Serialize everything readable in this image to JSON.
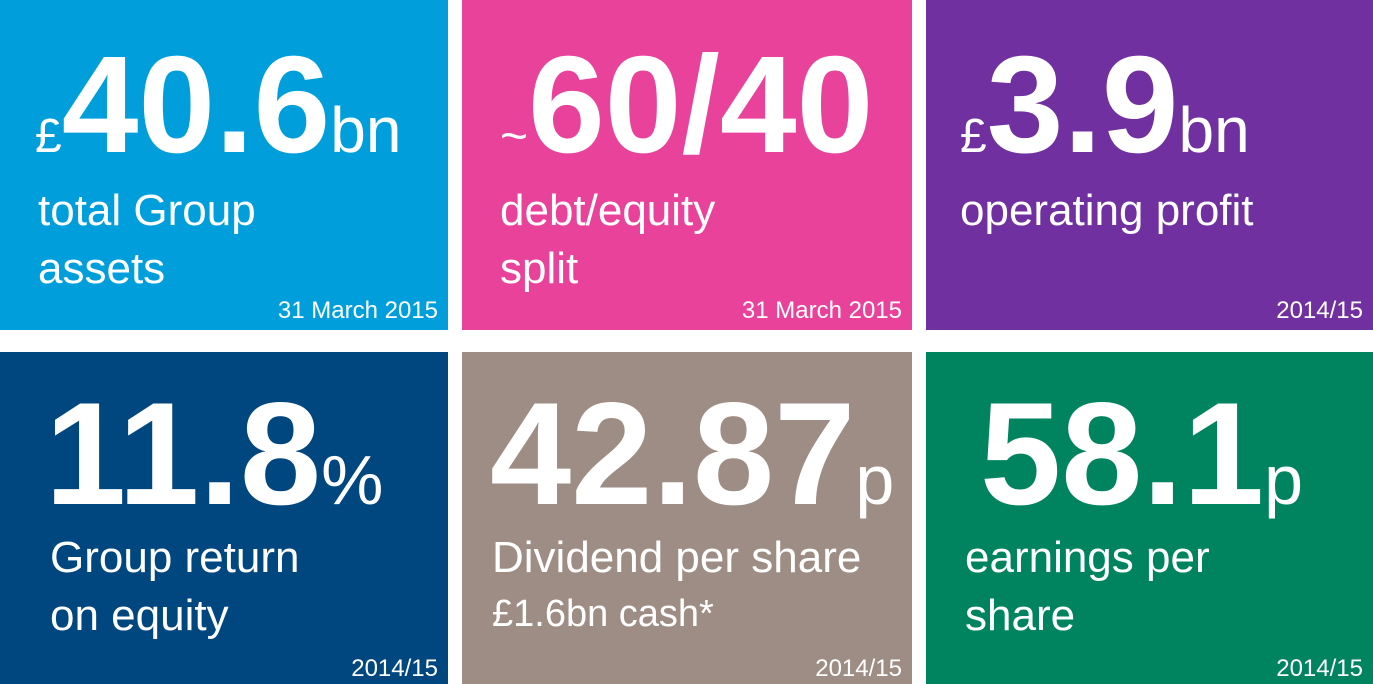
{
  "tiles": [
    {
      "color": "#009fdc",
      "prefix": "£",
      "number": "40.6",
      "suffix": "bn",
      "lines": [
        "total Group",
        "assets"
      ],
      "note": "31 March 2015"
    },
    {
      "color": "#e8429a",
      "prefix": "~",
      "number": "60/40",
      "lines": [
        "debt/equity",
        "split"
      ],
      "note": "31 March 2015"
    },
    {
      "color": "#7030a0",
      "prefix": "£",
      "number": "3.9",
      "suffix": "bn",
      "lines": [
        "operating profit"
      ],
      "note": "2014/15"
    },
    {
      "color": "#00467f",
      "number": "11.8",
      "suffix": "%",
      "lines": [
        "Group return",
        "on equity"
      ],
      "note": "2014/15"
    },
    {
      "color": "#9d8d84",
      "number": "42.87",
      "suffix": "p",
      "lines": [
        "Dividend per share",
        "£1.6bn cash*"
      ],
      "note": "2014/15"
    },
    {
      "color": "#00845f",
      "number": "58.1",
      "suffix": "p",
      "lines": [
        "earnings per",
        "share"
      ],
      "note": "2014/15"
    }
  ]
}
